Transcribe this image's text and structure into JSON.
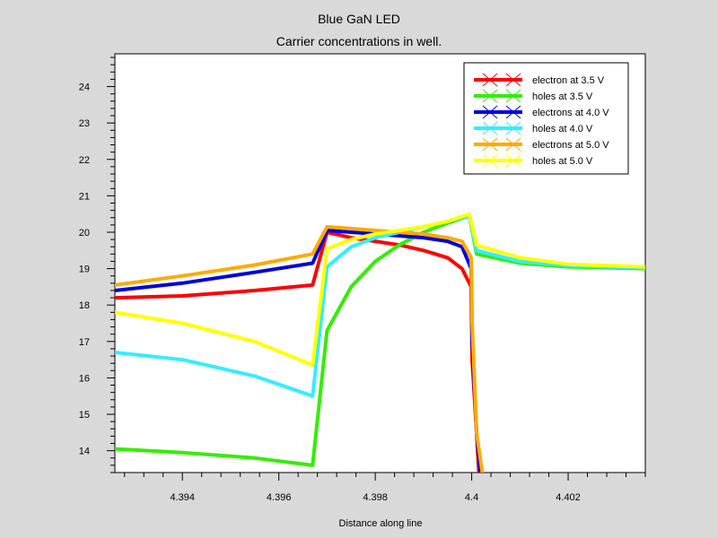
{
  "chart_data": {
    "type": "line",
    "title": "Blue GaN LED",
    "subtitle": "Carrier concentrations in well.",
    "xlabel": "Distance along line",
    "ylabel": "",
    "xlim": [
      4.3926,
      4.4036
    ],
    "ylim": [
      13.4,
      24.9
    ],
    "x_ticks": [
      {
        "value": 4.394,
        "label": "4.394"
      },
      {
        "value": 4.396,
        "label": "4.396"
      },
      {
        "value": 4.398,
        "label": "4.398"
      },
      {
        "value": 4.4,
        "label": "4.4"
      },
      {
        "value": 4.402,
        "label": "4.402"
      }
    ],
    "y_ticks": [
      {
        "value": 14,
        "label": "14"
      },
      {
        "value": 15,
        "label": "15"
      },
      {
        "value": 16,
        "label": "16"
      },
      {
        "value": 17,
        "label": "17"
      },
      {
        "value": 18,
        "label": "18"
      },
      {
        "value": 19,
        "label": "19"
      },
      {
        "value": 20,
        "label": "20"
      },
      {
        "value": 21,
        "label": "21"
      },
      {
        "value": 22,
        "label": "22"
      },
      {
        "value": 23,
        "label": "23"
      },
      {
        "value": 24,
        "label": "24"
      }
    ],
    "grid": false,
    "legend_position": "top-right",
    "series": [
      {
        "name": "electron at 3.5 V",
        "color": "#ff0000",
        "points": [
          [
            4.3926,
            18.2
          ],
          [
            4.394,
            18.25
          ],
          [
            4.3955,
            18.4
          ],
          [
            4.3967,
            18.55
          ],
          [
            4.397,
            20.0
          ],
          [
            4.3975,
            19.85
          ],
          [
            4.398,
            19.75
          ],
          [
            4.3985,
            19.65
          ],
          [
            4.399,
            19.5
          ],
          [
            4.3995,
            19.3
          ],
          [
            4.3998,
            19.0
          ],
          [
            4.39999,
            18.5
          ],
          [
            4.40001,
            16.5
          ],
          [
            4.4001,
            14.5
          ],
          [
            4.40015,
            13.4
          ]
        ]
      },
      {
        "name": "holes at 3.5 V",
        "color": "#33ee00",
        "points": [
          [
            4.3926,
            14.05
          ],
          [
            4.394,
            13.95
          ],
          [
            4.3955,
            13.8
          ],
          [
            4.3967,
            13.6
          ],
          [
            4.397,
            17.3
          ],
          [
            4.3975,
            18.5
          ],
          [
            4.398,
            19.2
          ],
          [
            4.3985,
            19.65
          ],
          [
            4.399,
            20.0
          ],
          [
            4.3995,
            20.25
          ],
          [
            4.39995,
            20.45
          ],
          [
            4.4001,
            19.4
          ],
          [
            4.401,
            19.15
          ],
          [
            4.402,
            19.05
          ],
          [
            4.4036,
            19.0
          ]
        ]
      },
      {
        "name": "electrons at 4.0 V",
        "color": "#0000dd",
        "points": [
          [
            4.3926,
            18.4
          ],
          [
            4.394,
            18.6
          ],
          [
            4.3955,
            18.9
          ],
          [
            4.3967,
            19.15
          ],
          [
            4.397,
            20.05
          ],
          [
            4.3975,
            20.0
          ],
          [
            4.398,
            19.95
          ],
          [
            4.3985,
            19.9
          ],
          [
            4.399,
            19.85
          ],
          [
            4.3995,
            19.75
          ],
          [
            4.3998,
            19.6
          ],
          [
            4.39999,
            19.0
          ],
          [
            4.40001,
            17.0
          ],
          [
            4.4001,
            14.5
          ],
          [
            4.40018,
            13.4
          ]
        ]
      },
      {
        "name": "holes at 4.0 V",
        "color": "#33eeff",
        "points": [
          [
            4.3926,
            16.7
          ],
          [
            4.394,
            16.5
          ],
          [
            4.3955,
            16.05
          ],
          [
            4.3967,
            15.5
          ],
          [
            4.397,
            19.05
          ],
          [
            4.3975,
            19.6
          ],
          [
            4.398,
            19.85
          ],
          [
            4.3985,
            20.0
          ],
          [
            4.399,
            20.15
          ],
          [
            4.3995,
            20.3
          ],
          [
            4.39995,
            20.45
          ],
          [
            4.4001,
            19.5
          ],
          [
            4.401,
            19.2
          ],
          [
            4.402,
            19.08
          ],
          [
            4.4036,
            19.02
          ]
        ]
      },
      {
        "name": "electrons at 5.0 V",
        "color": "#ffaa00",
        "points": [
          [
            4.3926,
            18.55
          ],
          [
            4.394,
            18.8
          ],
          [
            4.3955,
            19.1
          ],
          [
            4.3967,
            19.4
          ],
          [
            4.397,
            20.15
          ],
          [
            4.3975,
            20.1
          ],
          [
            4.398,
            20.05
          ],
          [
            4.3985,
            20.0
          ],
          [
            4.399,
            19.95
          ],
          [
            4.3995,
            19.85
          ],
          [
            4.3998,
            19.75
          ],
          [
            4.39999,
            19.3
          ],
          [
            4.40001,
            17.5
          ],
          [
            4.4001,
            14.5
          ],
          [
            4.40022,
            13.4
          ]
        ]
      },
      {
        "name": "holes at 5.0 V",
        "color": "#ffff00",
        "points": [
          [
            4.3926,
            17.8
          ],
          [
            4.394,
            17.5
          ],
          [
            4.3955,
            17.0
          ],
          [
            4.3967,
            16.35
          ],
          [
            4.397,
            19.55
          ],
          [
            4.3975,
            19.8
          ],
          [
            4.398,
            19.95
          ],
          [
            4.3985,
            20.05
          ],
          [
            4.399,
            20.15
          ],
          [
            4.3995,
            20.3
          ],
          [
            4.39995,
            20.5
          ],
          [
            4.4001,
            19.65
          ],
          [
            4.401,
            19.3
          ],
          [
            4.402,
            19.12
          ],
          [
            4.4036,
            19.05
          ]
        ]
      }
    ]
  }
}
